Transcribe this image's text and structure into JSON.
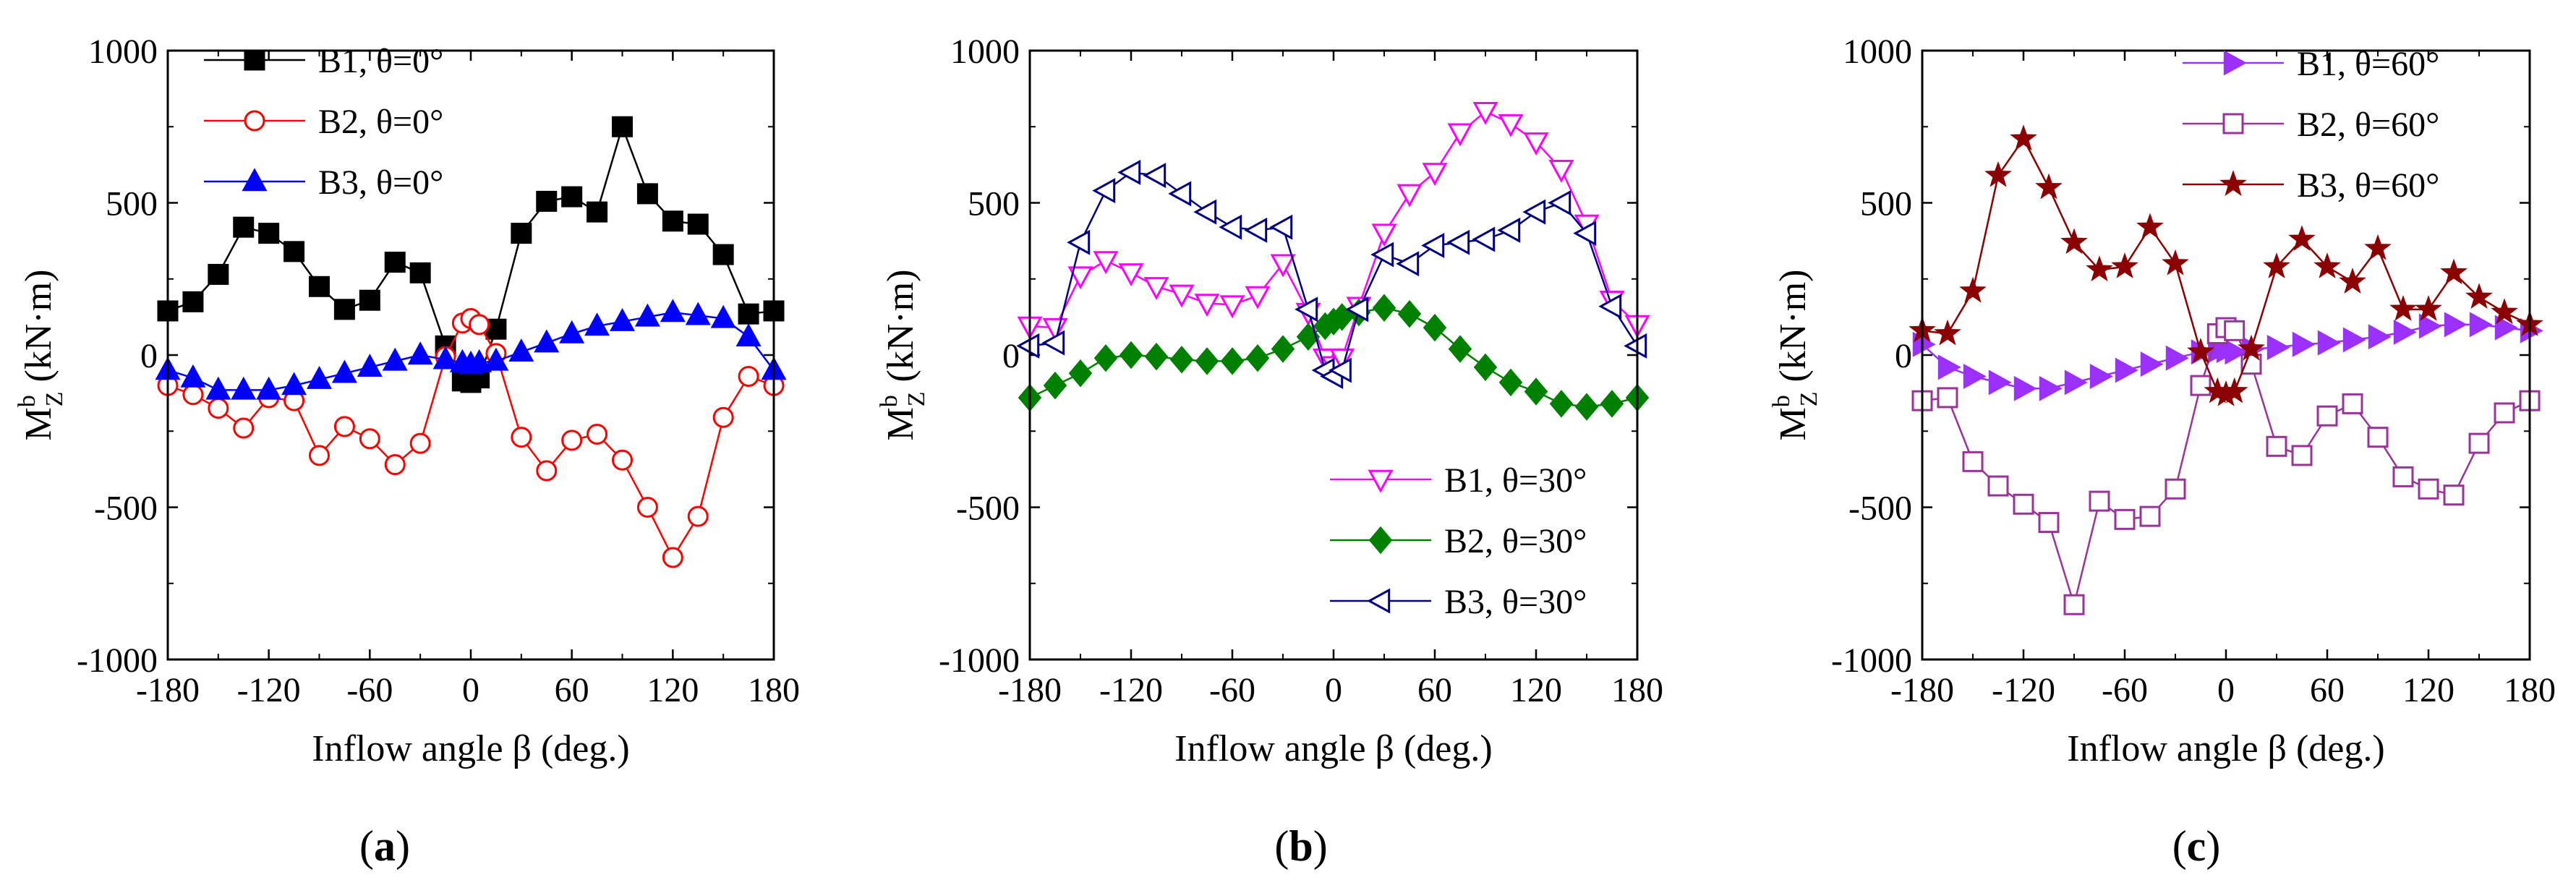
{
  "figure": {
    "title": ""
  },
  "chart_data": [
    {
      "type": "line",
      "panel_label": "a",
      "xlabel": "Inflow angle β (deg.)",
      "ylabel": {
        "main": "M",
        "sup": "b",
        "sub": "Z",
        "unit": " (kN·m)"
      },
      "xlim": [
        -180,
        180
      ],
      "ylim": [
        -1000,
        1000
      ],
      "xticks": [
        -180,
        -120,
        -60,
        0,
        60,
        120,
        180
      ],
      "yticks": [
        -1000,
        -500,
        0,
        500,
        1000
      ],
      "legend_position": "top-left",
      "x": [
        -180,
        -165,
        -150,
        -135,
        -120,
        -105,
        -90,
        -75,
        -60,
        -45,
        -30,
        -15,
        -5,
        0,
        5,
        15,
        30,
        45,
        60,
        75,
        90,
        105,
        120,
        135,
        150,
        165,
        180
      ],
      "series": [
        {
          "name": "B1, θ=0°",
          "color": "#000000",
          "marker": "square-filled",
          "values": [
            145,
            175,
            265,
            420,
            400,
            340,
            225,
            150,
            180,
            305,
            270,
            30,
            -85,
            -90,
            -75,
            85,
            400,
            505,
            520,
            470,
            750,
            530,
            440,
            430,
            330,
            135,
            145
          ]
        },
        {
          "name": "B2, θ=0°",
          "color": "#ff0000",
          "marker": "circle-open",
          "values": [
            -100,
            -130,
            -175,
            -240,
            -140,
            -150,
            -330,
            -235,
            -275,
            -360,
            -290,
            -5,
            105,
            120,
            100,
            5,
            -270,
            -380,
            -280,
            -260,
            -345,
            -500,
            -665,
            -530,
            -205,
            -70,
            -100
          ]
        },
        {
          "name": "B3, θ=0°",
          "color": "#0000ff",
          "marker": "triangle-up-filled",
          "values": [
            -50,
            -75,
            -115,
            -115,
            -115,
            -100,
            -80,
            -60,
            -40,
            -20,
            0,
            -15,
            -25,
            -30,
            -25,
            -20,
            10,
            40,
            70,
            95,
            110,
            125,
            140,
            130,
            120,
            60,
            -50
          ]
        }
      ]
    },
    {
      "type": "line",
      "panel_label": "b",
      "xlabel": "Inflow angle β (deg.)",
      "ylabel": {
        "main": "M",
        "sup": "b",
        "sub": "Z",
        "unit": " (kN·m)"
      },
      "xlim": [
        -180,
        180
      ],
      "ylim": [
        -1000,
        1000
      ],
      "xticks": [
        -180,
        -120,
        -60,
        0,
        60,
        120,
        180
      ],
      "yticks": [
        -1000,
        -500,
        0,
        500,
        1000
      ],
      "legend_position": "bottom-right",
      "x": [
        -180,
        -165,
        -150,
        -135,
        -120,
        -105,
        -90,
        -75,
        -60,
        -45,
        -30,
        -15,
        -5,
        0,
        5,
        15,
        30,
        45,
        60,
        75,
        90,
        105,
        120,
        135,
        150,
        165,
        180
      ],
      "series": [
        {
          "name": "B1, θ=30°",
          "color": "#ff00ff",
          "marker": "triangle-down-open",
          "values": [
            95,
            90,
            260,
            310,
            270,
            225,
            200,
            170,
            165,
            195,
            300,
            140,
            -10,
            -35,
            -10,
            160,
            400,
            530,
            600,
            730,
            800,
            760,
            700,
            610,
            430,
            180,
            100
          ]
        },
        {
          "name": "B2, θ=30°",
          "color": "#008000",
          "marker": "diamond-filled",
          "values": [
            -140,
            -100,
            -60,
            -10,
            0,
            -5,
            -15,
            -20,
            -20,
            -10,
            20,
            60,
            95,
            110,
            125,
            140,
            155,
            135,
            90,
            20,
            -40,
            -90,
            -120,
            -160,
            -170,
            -160,
            -140
          ]
        },
        {
          "name": "B3, θ=30°",
          "color": "#000080",
          "marker": "triangle-left-open",
          "values": [
            30,
            40,
            370,
            540,
            600,
            590,
            530,
            470,
            420,
            410,
            420,
            150,
            -50,
            -70,
            -50,
            150,
            330,
            300,
            360,
            370,
            380,
            410,
            470,
            500,
            400,
            160,
            30
          ]
        }
      ]
    },
    {
      "type": "line",
      "panel_label": "c",
      "xlabel": "Inflow angle β (deg.)",
      "ylabel": {
        "main": "M",
        "sup": "b",
        "sub": "Z",
        "unit": " (kN·m)"
      },
      "xlim": [
        -180,
        180
      ],
      "ylim": [
        -1000,
        1000
      ],
      "xticks": [
        -180,
        -120,
        -60,
        0,
        60,
        120,
        180
      ],
      "yticks": [
        -1000,
        -500,
        0,
        500,
        1000
      ],
      "legend_position": "top-right",
      "x": [
        -180,
        -165,
        -150,
        -135,
        -120,
        -105,
        -90,
        -75,
        -60,
        -45,
        -30,
        -15,
        -5,
        0,
        5,
        15,
        30,
        45,
        60,
        75,
        90,
        105,
        120,
        135,
        150,
        165,
        180
      ],
      "series": [
        {
          "name": "B1, θ=60°",
          "color": "#9b30ff",
          "marker": "triangle-right-filled",
          "values": [
            35,
            -40,
            -70,
            -90,
            -110,
            -110,
            -90,
            -70,
            -50,
            -30,
            -10,
            10,
            15,
            15,
            10,
            20,
            25,
            35,
            40,
            50,
            60,
            75,
            95,
            100,
            100,
            90,
            80
          ]
        },
        {
          "name": "B2, θ=60°",
          "color": "#993399",
          "marker": "square-open",
          "values": [
            -150,
            -140,
            -350,
            -430,
            -490,
            -550,
            -820,
            -480,
            -540,
            -530,
            -440,
            -100,
            70,
            90,
            80,
            -30,
            -300,
            -330,
            -200,
            -160,
            -270,
            -400,
            -440,
            -460,
            -290,
            -190,
            -150
          ]
        },
        {
          "name": "B3, θ=60°",
          "color": "#8b0000",
          "marker": "star-filled",
          "values": [
            80,
            70,
            210,
            590,
            710,
            550,
            370,
            280,
            290,
            420,
            300,
            10,
            -120,
            -130,
            -120,
            20,
            290,
            380,
            290,
            240,
            350,
            150,
            150,
            270,
            190,
            140,
            100
          ]
        }
      ]
    }
  ]
}
